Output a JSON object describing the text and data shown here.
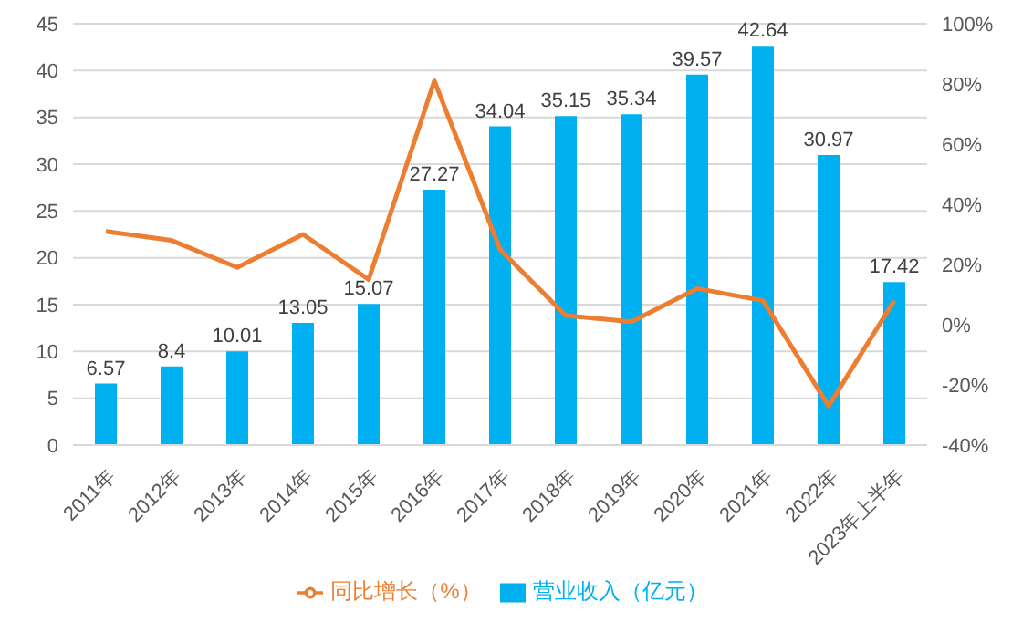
{
  "chart_data": {
    "type": "bar",
    "categories": [
      "2011年",
      "2012年",
      "2013年",
      "2014年",
      "2015年",
      "2016年",
      "2017年",
      "2018年",
      "2019年",
      "2020年",
      "2021年",
      "2022年",
      "2023年上半年"
    ],
    "series": [
      {
        "name": "营业收入（亿元）",
        "color": "#00b0f0",
        "values": [
          6.57,
          8.4,
          10.01,
          13.05,
          15.07,
          27.27,
          34.04,
          35.15,
          35.34,
          39.57,
          42.64,
          30.97,
          17.42
        ],
        "value_labels": [
          "6.57",
          "8.4",
          "10.01",
          "13.05",
          "15.07",
          "27.27",
          "34.04",
          "35.15",
          "35.34",
          "39.57",
          "42.64",
          "30.97",
          "17.42"
        ]
      },
      {
        "name": "同比增长（%）",
        "type": "line",
        "axis": "y2",
        "color": "#ed7d31",
        "values": [
          31,
          28,
          19,
          30,
          15,
          81,
          25,
          3,
          1,
          12,
          8,
          -27,
          8
        ]
      }
    ],
    "ylim": [
      0,
      45
    ],
    "yticks": [
      0,
      5,
      10,
      15,
      20,
      25,
      30,
      35,
      40,
      45
    ],
    "y2lim": [
      -40,
      100
    ],
    "y2ticks": [
      {
        "value": -40,
        "label": "-40%"
      },
      {
        "value": -20,
        "label": "-20%"
      },
      {
        "value": 0,
        "label": "0%"
      },
      {
        "value": 20,
        "label": "20%"
      },
      {
        "value": 40,
        "label": "40%"
      },
      {
        "value": 60,
        "label": "60%"
      },
      {
        "value": 80,
        "label": "80%"
      },
      {
        "value": 100,
        "label": "100%"
      }
    ],
    "grid": "y",
    "legend": "bottom",
    "marker": "none",
    "line_style": "solid"
  }
}
